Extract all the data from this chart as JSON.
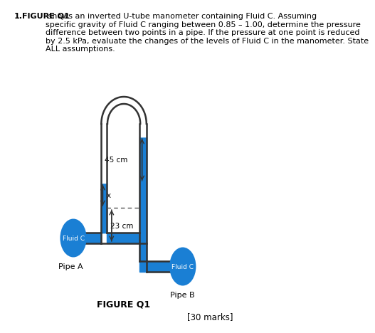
{
  "background_color": "#ffffff",
  "text_color": "#000000",
  "blue": "#1a7fd4",
  "dark": "#333333",
  "question_number": "1.",
  "bold_part": "FIGURE Q1",
  "normal_part": " shows an inverted U-tube manometer containing Fluid C. Assuming\nspecific gravity of Fluid C ranging between 0.85 – 1.00, determine the pressure\ndifference between two points in a pipe. If the pressure at one point is reduced\nby 2.5 kPa, evaluate the changes of the levels of Fluid C in the manometer. State\nALL assumptions.",
  "figure_label": "FIGURE Q1",
  "marks_label": "[30 marks]",
  "dim_45": "45 cm",
  "dim_x": "x",
  "dim_23": "23 cm",
  "label_fluid_c_left": "Fluid C",
  "label_fluid_c_right": "Fluid C",
  "label_pipe_a": "Pipe A",
  "label_pipe_b": "Pipe B"
}
